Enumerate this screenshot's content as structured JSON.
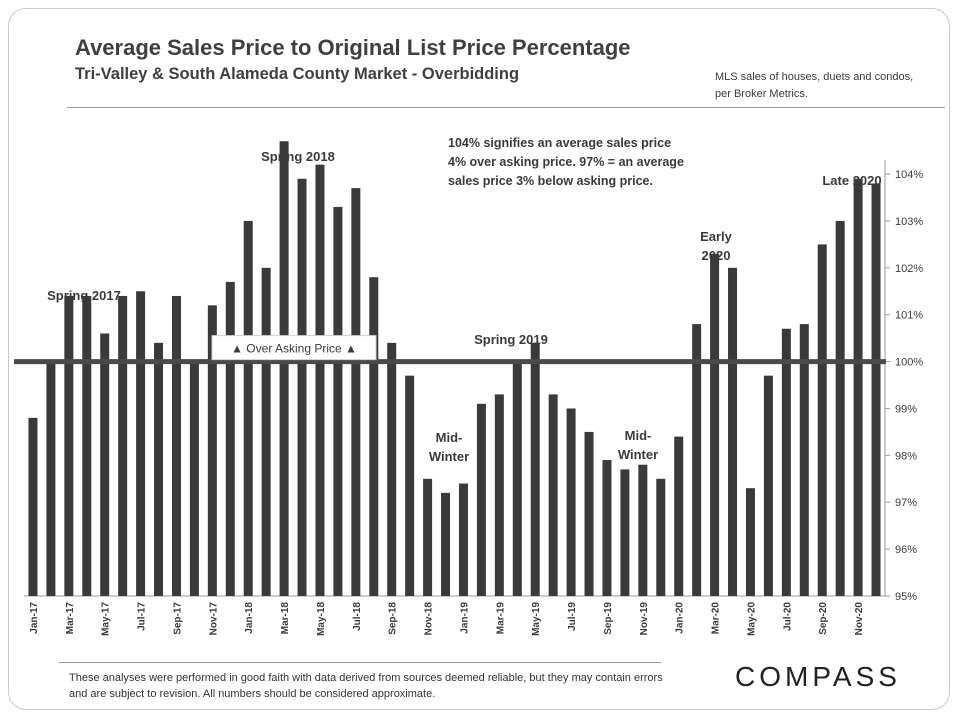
{
  "header": {
    "title": "Average Sales Price to Original List Price Percentage",
    "subtitle": "Tri-Valley  & South Alameda County Market - Overbidding",
    "source_note": "MLS sales of houses, duets and condos, per Broker Metrics."
  },
  "footer": {
    "disclaimer": "These analyses were performed in good faith with data derived from sources deemed reliable, but they may contain errors and are subject to revision. All numbers should be considered  approximate.",
    "logo_text": "COMPASS"
  },
  "chart_data": {
    "type": "bar",
    "title": "Average Sales Price to Original List Price Percentage",
    "xlabel": "",
    "ylabel": "",
    "ylim": [
      95,
      104.3
    ],
    "y_ticks": [
      "95%",
      "96%",
      "97%",
      "98%",
      "99%",
      "100%",
      "101%",
      "102%",
      "103%",
      "104%"
    ],
    "y_tick_values": [
      95,
      96,
      97,
      98,
      99,
      100,
      101,
      102,
      103,
      104
    ],
    "reference_line": 100,
    "categories": [
      "Jan-17",
      "Feb-17",
      "Mar-17",
      "Apr-17",
      "May-17",
      "Jun-17",
      "Jul-17",
      "Aug-17",
      "Sep-17",
      "Oct-17",
      "Nov-17",
      "Dec-17",
      "Jan-18",
      "Feb-18",
      "Mar-18",
      "Apr-18",
      "May-18",
      "Jun-18",
      "Jul-18",
      "Aug-18",
      "Sep-18",
      "Oct-18",
      "Nov-18",
      "Dec-18",
      "Jan-19",
      "Feb-19",
      "Mar-19",
      "Apr-19",
      "May-19",
      "Jun-19",
      "Jul-19",
      "Aug-19",
      "Sep-19",
      "Oct-19",
      "Nov-19",
      "Dec-19",
      "Jan-20",
      "Feb-20",
      "Mar-20",
      "Apr-20",
      "May-20",
      "Jun-20",
      "Jul-20",
      "Aug-20",
      "Sep-20",
      "Oct-20",
      "Nov-20",
      "Dec-20"
    ],
    "x_tick_labels": [
      "Jan-17",
      "Mar-17",
      "May-17",
      "Jul-17",
      "Sep-17",
      "Nov-17",
      "Jan-18",
      "Mar-18",
      "May-18",
      "Jul-18",
      "Sep-18",
      "Nov-18",
      "Jan-19",
      "Mar-19",
      "May-19",
      "Jul-19",
      "Sep-19",
      "Nov-19",
      "Jan-20",
      "Mar-20",
      "May-20",
      "Jul-20",
      "Sep-20",
      "Nov-20"
    ],
    "values": [
      98.8,
      100.0,
      101.4,
      101.4,
      100.6,
      101.4,
      101.5,
      100.4,
      101.4,
      100.0,
      101.2,
      101.7,
      103.0,
      102.0,
      104.7,
      103.9,
      104.2,
      103.3,
      103.7,
      101.8,
      100.4,
      99.7,
      97.5,
      97.2,
      97.4,
      99.1,
      99.3,
      100.0,
      100.4,
      99.3,
      99.0,
      98.5,
      97.9,
      97.7,
      97.8,
      97.5,
      98.4,
      100.8,
      102.3,
      102.0,
      97.3,
      99.7,
      100.7,
      100.8,
      102.5,
      103.0,
      103.9,
      103.8
    ],
    "annotations": {
      "spring_2017": "Spring 2017",
      "spring_2018": "Spring 2018",
      "spring_2019": "Spring 2019",
      "mid_winter_1": [
        "Mid-",
        "Winter"
      ],
      "mid_winter_2": [
        "Mid-",
        "Winter"
      ],
      "early_2020": [
        "Early",
        "2020"
      ],
      "late_2020": "Late 2020",
      "over_asking": "▲ Over Asking Price ▲",
      "explanation": [
        "104%  signifies  an  average  sales  price",
        "4% over asking price. 97% = an average",
        "sales price 3% below asking price."
      ]
    },
    "colors": {
      "bar": "#3a3a3a",
      "reference_line": "#4a4a4a",
      "axis": "#999999"
    },
    "grid": true
  }
}
